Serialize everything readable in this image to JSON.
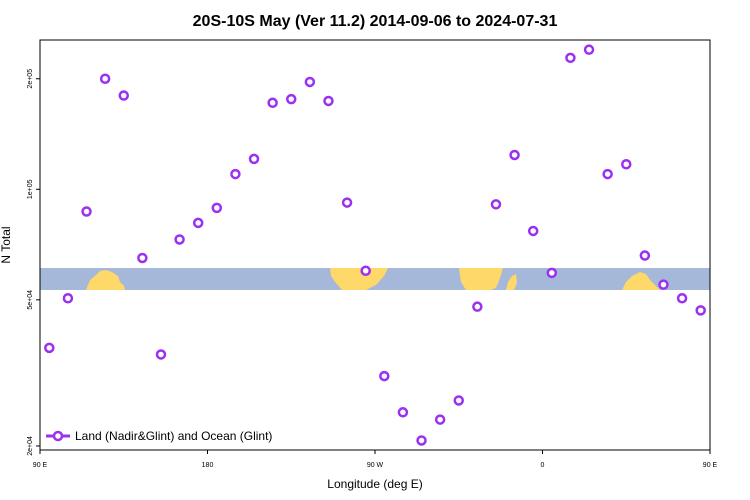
{
  "chart_data": {
    "type": "scatter",
    "title": "20S-10S May (Ver 11.2)   2014-09-06 to 2024-07-31",
    "xlabel": "Longitude (deg E)",
    "ylabel": "N Total",
    "y_scale": "log",
    "xlim": [
      90,
      450
    ],
    "ylim": [
      19500,
      255000
    ],
    "x_ticks": [
      {
        "value": 90,
        "label": "90 E"
      },
      {
        "value": 180,
        "label": "180"
      },
      {
        "value": 270,
        "label": "90 W"
      },
      {
        "value": 360,
        "label": "0"
      },
      {
        "value": 450,
        "label": "90 E"
      }
    ],
    "y_ticks": [
      {
        "value": 20000,
        "label": "2e+04"
      },
      {
        "value": 50000,
        "label": "5e+04"
      },
      {
        "value": 100000,
        "label": "1e+05"
      },
      {
        "value": 200000,
        "label": "2e+05"
      }
    ],
    "series": [
      {
        "name": "Land (Nadir&Glint) and Ocean (Glint)",
        "color": "#9b30f0",
        "marker": "open-circle",
        "x": [
          95,
          105,
          115,
          125,
          135,
          145,
          155,
          165,
          175,
          185,
          195,
          205,
          215,
          225,
          235,
          245,
          255,
          265,
          275,
          285,
          295,
          305,
          315,
          325,
          335,
          345,
          355,
          365,
          375,
          385,
          395,
          405,
          415,
          425,
          435,
          445
        ],
        "y": [
          37000,
          50500,
          87000,
          200000,
          180000,
          65000,
          35500,
          73000,
          81000,
          89000,
          110000,
          121000,
          172000,
          176000,
          196000,
          174000,
          92000,
          60000,
          31000,
          24700,
          20700,
          23600,
          26600,
          47900,
          91000,
          124000,
          77000,
          59200,
          228000,
          240000,
          110000,
          117000,
          66000,
          55000,
          50500,
          46800
        ]
      }
    ],
    "legend": {
      "location": "bottom-left"
    },
    "background": {
      "ocean_color": "#a5b8d9",
      "land_color": "#ffd86a"
    }
  }
}
